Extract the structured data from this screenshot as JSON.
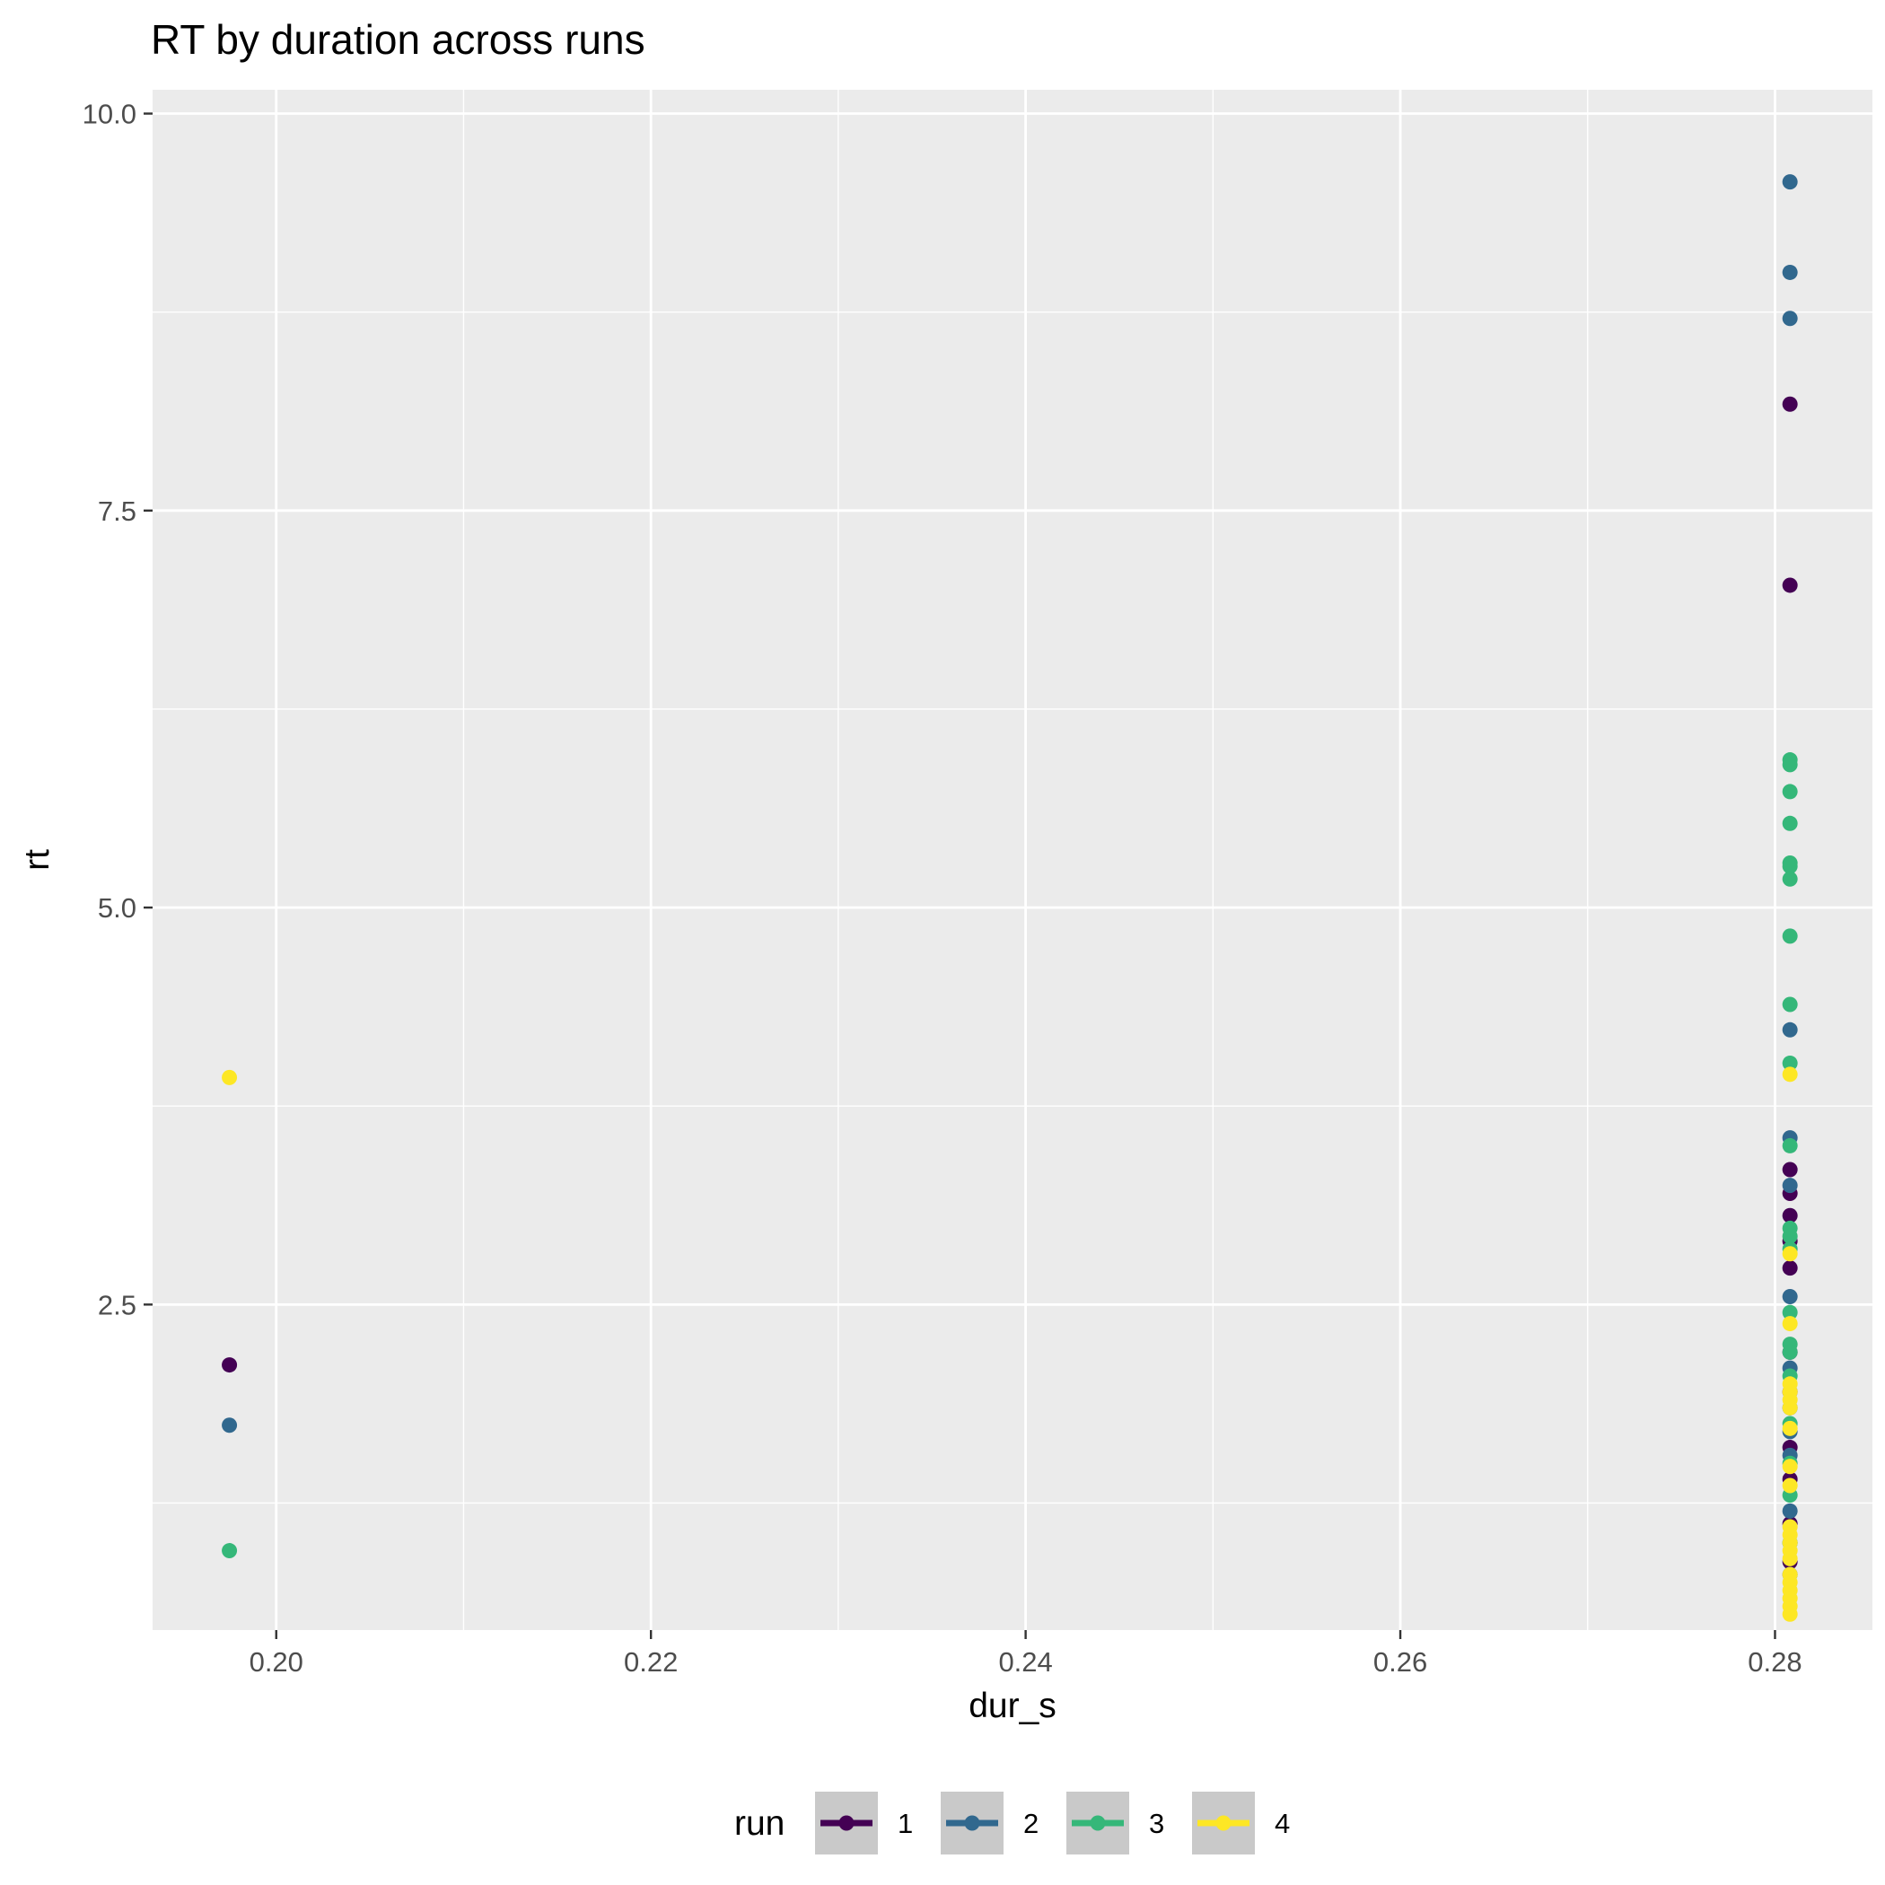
{
  "chart_data": {
    "type": "scatter",
    "title": "RT by duration across runs",
    "xlabel": "dur_s",
    "ylabel": "rt",
    "xlim": [
      0.1934,
      0.2852
    ],
    "ylim": [
      0.45,
      10.15
    ],
    "x_ticks": [
      0.2,
      0.22,
      0.24,
      0.26,
      0.28
    ],
    "x_tick_labels": [
      "0.20",
      "0.22",
      "0.24",
      "0.26",
      "0.28"
    ],
    "y_ticks": [
      2.5,
      5.0,
      7.5,
      10.0
    ],
    "y_tick_labels": [
      "2.5",
      "5.0",
      "7.5",
      "10.0"
    ],
    "grid": true,
    "legend": {
      "title": "run",
      "position": "bottom"
    },
    "series": [
      {
        "name": "1",
        "color": "#440154",
        "points": [
          [
            0.1975,
            2.12
          ],
          [
            0.2808,
            8.17
          ],
          [
            0.2808,
            7.03
          ],
          [
            0.2808,
            3.35
          ],
          [
            0.2808,
            3.2
          ],
          [
            0.2808,
            3.06
          ],
          [
            0.2808,
            2.9
          ],
          [
            0.2808,
            2.73
          ],
          [
            0.2808,
            2.2
          ],
          [
            0.2808,
            1.95
          ],
          [
            0.2808,
            1.6
          ],
          [
            0.2808,
            1.4
          ],
          [
            0.2808,
            1.12
          ],
          [
            0.2808,
            0.88
          ]
        ]
      },
      {
        "name": "2",
        "color": "#31688E",
        "points": [
          [
            0.1975,
            1.74
          ],
          [
            0.2808,
            9.57
          ],
          [
            0.2808,
            9.0
          ],
          [
            0.2808,
            8.71
          ],
          [
            0.2808,
            4.23
          ],
          [
            0.2808,
            3.55
          ],
          [
            0.2808,
            3.25
          ],
          [
            0.2808,
            2.55
          ],
          [
            0.2808,
            2.1
          ],
          [
            0.2808,
            1.85
          ],
          [
            0.2808,
            1.7
          ],
          [
            0.2808,
            1.55
          ],
          [
            0.2808,
            1.2
          ],
          [
            0.2808,
            1.0
          ],
          [
            0.2808,
            0.8
          ]
        ]
      },
      {
        "name": "3",
        "color": "#35B779",
        "points": [
          [
            0.1975,
            0.95
          ],
          [
            0.2808,
            5.93
          ],
          [
            0.2808,
            5.9
          ],
          [
            0.2808,
            5.73
          ],
          [
            0.2808,
            5.53
          ],
          [
            0.2808,
            5.28
          ],
          [
            0.2808,
            5.26
          ],
          [
            0.2808,
            5.18
          ],
          [
            0.2808,
            4.82
          ],
          [
            0.2808,
            4.39
          ],
          [
            0.2808,
            4.02
          ],
          [
            0.2808,
            3.5
          ],
          [
            0.2808,
            2.98
          ],
          [
            0.2808,
            2.93
          ],
          [
            0.2808,
            2.85
          ],
          [
            0.2808,
            2.45
          ],
          [
            0.2808,
            2.25
          ],
          [
            0.2808,
            2.2
          ],
          [
            0.2808,
            2.05
          ],
          [
            0.2808,
            1.75
          ],
          [
            0.2808,
            1.5
          ],
          [
            0.2808,
            1.3
          ],
          [
            0.2808,
            1.0
          ]
        ]
      },
      {
        "name": "4",
        "color": "#FDE725",
        "points": [
          [
            0.1975,
            3.93
          ],
          [
            0.2808,
            3.95
          ],
          [
            0.2808,
            2.82
          ],
          [
            0.2808,
            2.38
          ],
          [
            0.2808,
            2.0
          ],
          [
            0.2808,
            1.95
          ],
          [
            0.2808,
            1.9
          ],
          [
            0.2808,
            1.85
          ],
          [
            0.2808,
            1.72
          ],
          [
            0.2808,
            1.48
          ],
          [
            0.2808,
            1.36
          ],
          [
            0.2808,
            1.1
          ],
          [
            0.2808,
            1.05
          ],
          [
            0.2808,
            1.0
          ],
          [
            0.2808,
            0.95
          ],
          [
            0.2808,
            0.9
          ],
          [
            0.2808,
            0.8
          ],
          [
            0.2808,
            0.75
          ],
          [
            0.2808,
            0.7
          ],
          [
            0.2808,
            0.65
          ],
          [
            0.2808,
            0.6
          ],
          [
            0.2808,
            0.55
          ]
        ]
      }
    ]
  }
}
